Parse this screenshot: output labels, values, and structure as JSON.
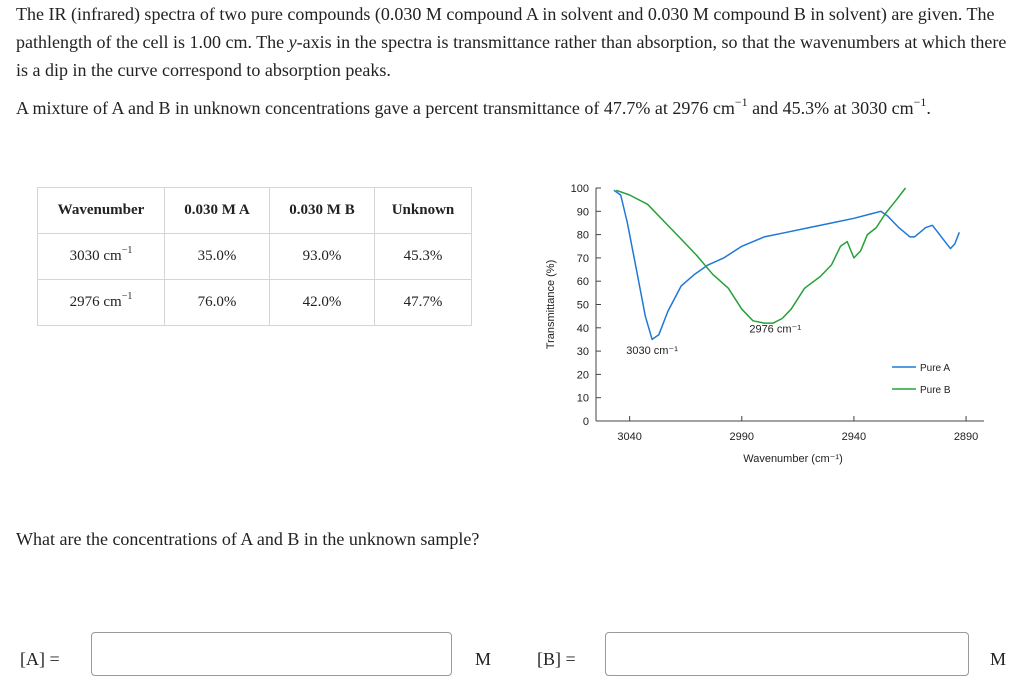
{
  "intro": {
    "p1": "The IR (infrared) spectra of two pure compounds (0.030 M compound A in solvent and 0.030 M compound B in solvent) are given. The pathlength of the cell is 1.00 cm. The ",
    "y_word": "y",
    "p2": "-axis in the spectra is transmittance rather than absorption, so that the wavenumbers at which there is a dip in the curve correspond to absorption peaks."
  },
  "mixture": {
    "part1": "A mixture of A and B in unknown concentrations gave a percent transmittance of 47.7% at 2976 cm",
    "exp": "−1",
    "part2": " and 45.3% at 3030 cm",
    "part3": "."
  },
  "table": {
    "headers": [
      "Wavenumber",
      "0.030 M A",
      "0.030 M B",
      "Unknown"
    ],
    "rows": [
      {
        "wavenumber": "3030 cm",
        "a": "35.0%",
        "b": "93.0%",
        "unknown": "45.3%"
      },
      {
        "wavenumber": "2976 cm",
        "a": "76.0%",
        "b": "42.0%",
        "unknown": "47.7%"
      }
    ],
    "exp": "−1"
  },
  "chart_data": {
    "type": "line",
    "xlabel": "Wavenumber (cm⁻¹)",
    "ylabel": "Transmittance (%)",
    "xlim": [
      3055,
      2882
    ],
    "ylim": [
      0,
      100
    ],
    "xticks": [
      "3040",
      "2990",
      "2940",
      "2890"
    ],
    "yticks": [
      "100",
      "90",
      "80",
      "70",
      "60",
      "50",
      "40",
      "30",
      "20",
      "10",
      "0"
    ],
    "annotations": [
      {
        "text": "3030 cm⁻¹",
        "x": 3030,
        "y": 30
      },
      {
        "text": "2976 cm⁻¹",
        "x": 2976,
        "y": 38
      }
    ],
    "colors": {
      "A": "#1f78d6",
      "B": "#26a03a"
    },
    "series": [
      {
        "name": "Pure A",
        "color": "#1f78d6",
        "x": [
          3047,
          3044,
          3041,
          3037,
          3033,
          3030,
          3027,
          3023,
          3017,
          3011,
          3005,
          2998,
          2990,
          2980,
          2970,
          2960,
          2950,
          2940,
          2932,
          2928,
          2925,
          2920,
          2915,
          2913,
          2908,
          2905,
          2901,
          2897,
          2895,
          2893
        ],
        "y": [
          99,
          97,
          85,
          65,
          45,
          35,
          37,
          47,
          58,
          63,
          67,
          70,
          75,
          79,
          81,
          83,
          85,
          87,
          89,
          90,
          88,
          83,
          79,
          79,
          83,
          84,
          79,
          74,
          76,
          81
        ]
      },
      {
        "name": "Pure B",
        "color": "#26a03a",
        "x": [
          3046,
          3040,
          3032,
          3025,
          3018,
          3010,
          3003,
          2996,
          2990,
          2985,
          2980,
          2976,
          2972,
          2968,
          2962,
          2955,
          2950,
          2946,
          2943,
          2940,
          2937,
          2934,
          2930,
          2926,
          2921,
          2917
        ],
        "y": [
          99,
          97,
          93,
          86,
          79,
          71,
          63,
          57,
          48,
          43,
          42,
          42,
          44,
          48,
          57,
          62,
          67,
          75,
          77,
          70,
          73,
          80,
          83,
          89,
          95,
          100
        ]
      }
    ],
    "legend_position": "right"
  },
  "question": "What are the concentrations of A and B in the unknown sample?",
  "answers": {
    "a_label": "[A] =",
    "a_value": "",
    "a_unit": "M",
    "b_label": "[B] =",
    "b_value": "",
    "b_unit": "M"
  }
}
